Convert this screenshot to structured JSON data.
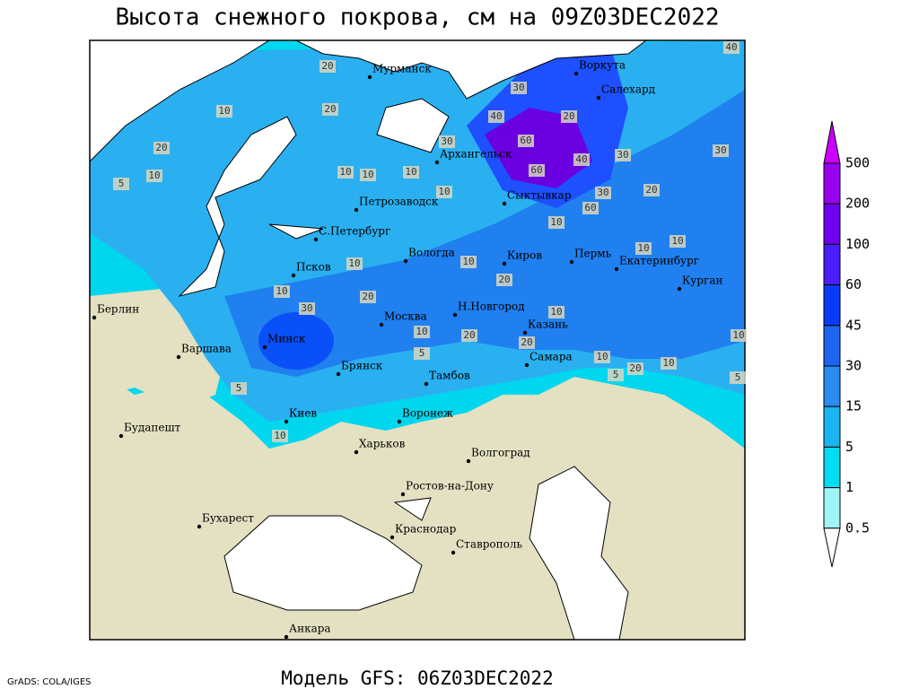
{
  "title": "Высота снежного покрова, см на 09Z03DEC2022",
  "cities": [
    "Мурманск",
    "Воркута",
    "Салехард",
    "Архангельск",
    "Сыктывкар",
    "Петрозаводск",
    "С.Петербург",
    "Вологда",
    "Киров",
    "Пермь",
    "Екатеринбург",
    "Курган",
    "Псков",
    "Берлин",
    "Минск",
    "Москва",
    "Н.Новгород",
    "Казань",
    "Варшава",
    "Брянск",
    "Тамбов",
    "Самара",
    "Киев",
    "Воронеж",
    "Будапешт",
    "Харьков",
    "Волгоград",
    "Ростов-на-Дону",
    "Бухарест",
    "Краснодар",
    "Ставрополь",
    "Анкара"
  ],
  "contour_labels": [
    20,
    40,
    30,
    40,
    20,
    60,
    60,
    40,
    30,
    30,
    20,
    30,
    60,
    10,
    30,
    10,
    10,
    10,
    10,
    20,
    10,
    20,
    10,
    5,
    10,
    10,
    10,
    20,
    10,
    10,
    20,
    30,
    10,
    20,
    20,
    10,
    20,
    10,
    5,
    10,
    5,
    5,
    10,
    5,
    10
  ],
  "colorbar": {
    "levels": [
      500,
      200,
      100,
      60,
      45,
      30,
      15,
      5,
      1,
      0.5
    ],
    "colors": [
      "#cc00ff",
      "#9a00f0",
      "#7000f0",
      "#4a1ef8",
      "#0a3cf8",
      "#1e64f0",
      "#2a8cf0",
      "#1ab4f0",
      "#00dcf0",
      "#a0f4f8",
      "#ffffff"
    ]
  },
  "footer": {
    "credit": "GrADS: COLA/IGES",
    "model": "Модель GFS: 06Z03DEC2022"
  }
}
